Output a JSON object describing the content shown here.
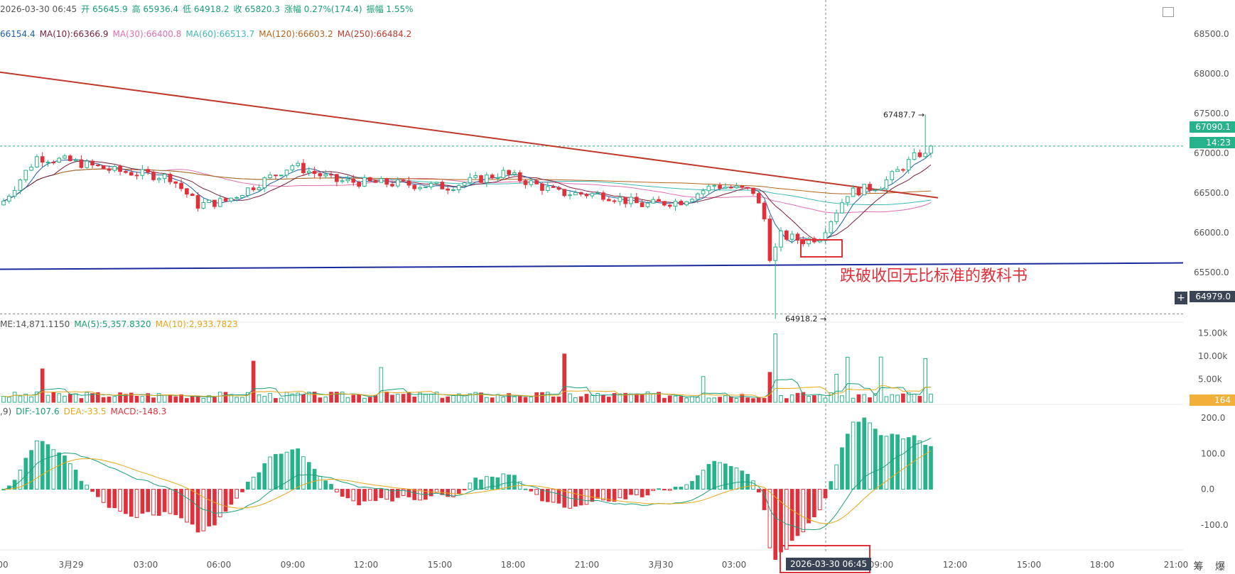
{
  "header": {
    "line1": [
      {
        "text": "2026-03-30 06:45",
        "color": "#555555"
      },
      {
        "text": "开 65645.9",
        "color": "#1a9f7a"
      },
      {
        "text": "高 65936.4",
        "color": "#1a9f7a"
      },
      {
        "text": "低 64918.2",
        "color": "#1a9f7a"
      },
      {
        "text": "收 65820.3",
        "color": "#1a9f7a"
      },
      {
        "text": "涨幅 0.27%(174.4)",
        "color": "#1a9f7a"
      },
      {
        "text": "振幅 1.55%",
        "color": "#1a9f7a"
      }
    ],
    "ma_line": [
      {
        "text": "66154.4",
        "color": "#1f5fa8"
      },
      {
        "text": "MA(10):66366.9",
        "color": "#7a1f3d"
      },
      {
        "text": "MA(30):66400.8",
        "color": "#e06fb0"
      },
      {
        "text": "MA(60):66513.7",
        "color": "#3fb8b8"
      },
      {
        "text": "MA(120):66603.2",
        "color": "#b5651d"
      },
      {
        "text": "MA(250):66484.2",
        "color": "#c0392b"
      }
    ],
    "vol_line": [
      {
        "text": "ME:14,871.1150",
        "color": "#555555"
      },
      {
        "text": "MA(5):5,357.8320",
        "color": "#1a9f7a"
      },
      {
        "text": "MA(10):2,933.7823",
        "color": "#e6a817"
      }
    ],
    "macd_line": [
      {
        "text": ",9)",
        "color": "#555555"
      },
      {
        "text": "DIF:-107.6",
        "color": "#1a9f7a"
      },
      {
        "text": "DEA:-33.5",
        "color": "#e6a817"
      },
      {
        "text": "MACD:-148.3",
        "color": "#e0303a"
      }
    ]
  },
  "price_axis": {
    "ticks": [
      "68500.0",
      "68000.0",
      "67500.0",
      "67000.0",
      "66500.0",
      "66000.0",
      "65500.0"
    ],
    "tick_values": [
      68500,
      68000,
      67500,
      67000,
      66500,
      66000,
      65500
    ],
    "current_price": "67090.1",
    "countdown": "14:23",
    "crosshair_price": "64979.0",
    "high_label": "67487.7 →",
    "low_label": "64918.2 →"
  },
  "volume_axis": {
    "ticks": [
      "15.00k",
      "10.00k",
      "5.00k"
    ],
    "current": "164"
  },
  "macd_axis": {
    "ticks": [
      "200.0",
      "100.0",
      "0.0",
      "-100.0"
    ]
  },
  "time_axis": {
    "labels": [
      "00",
      "3月29",
      "03:00",
      "06:00",
      "09:00",
      "12:00",
      "15:00",
      "18:00",
      "21:00",
      "3月30",
      "03:00",
      "06:45",
      "09:00",
      "12:00",
      "15:00",
      "18:00",
      "21:00"
    ],
    "crosshair_time": "2026-03-30 06:45",
    "right_icons": "筹 爆"
  },
  "annotation": {
    "text": "跌破收回无比标准的教科书"
  },
  "colors": {
    "up": "#26b28a",
    "down": "#e0303a",
    "trendline": "#1a2a9a",
    "ma250": "#c0392b",
    "annot_box": "#e0303a"
  },
  "chart_data": {
    "type": "candlestick",
    "price_range": [
      65000,
      68750
    ],
    "key_points": {
      "high": 67487.7,
      "low": 64918.2,
      "last": 67090.1,
      "crosshair_price": 64979.0
    },
    "trendline": {
      "start": 65540,
      "end": 65620
    },
    "ma250": {
      "start": 68020,
      "end": 66440
    },
    "volume_range": [
      0,
      16500
    ],
    "macd_range": [
      -160,
      210
    ]
  }
}
